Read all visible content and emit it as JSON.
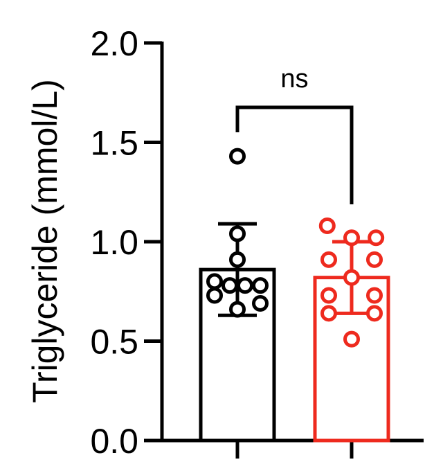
{
  "chart_data": {
    "type": "bar",
    "title": "",
    "xlabel": "",
    "ylabel": "Triglyceride (mmol/L)",
    "ylim": [
      0,
      2.0
    ],
    "yticks": [
      "0.0",
      "0.5",
      "1.0",
      "1.5",
      "2.0"
    ],
    "grid": false,
    "series": [
      {
        "color": "#000000",
        "mean": 0.86,
        "sd_upper": 1.09,
        "sd_lower": 0.63,
        "points": [
          1.43,
          1.04,
          0.91,
          0.8,
          0.78,
          0.78,
          0.73,
          0.69,
          0.66,
          0.78
        ]
      },
      {
        "color": "#ee2a1e",
        "mean": 0.82,
        "sd_upper": 1.0,
        "sd_lower": 0.64,
        "points": [
          1.08,
          1.02,
          1.02,
          0.91,
          0.91,
          0.82,
          0.73,
          0.73,
          0.64,
          0.64,
          0.51
        ]
      }
    ],
    "annotation": {
      "label": "ns"
    }
  }
}
